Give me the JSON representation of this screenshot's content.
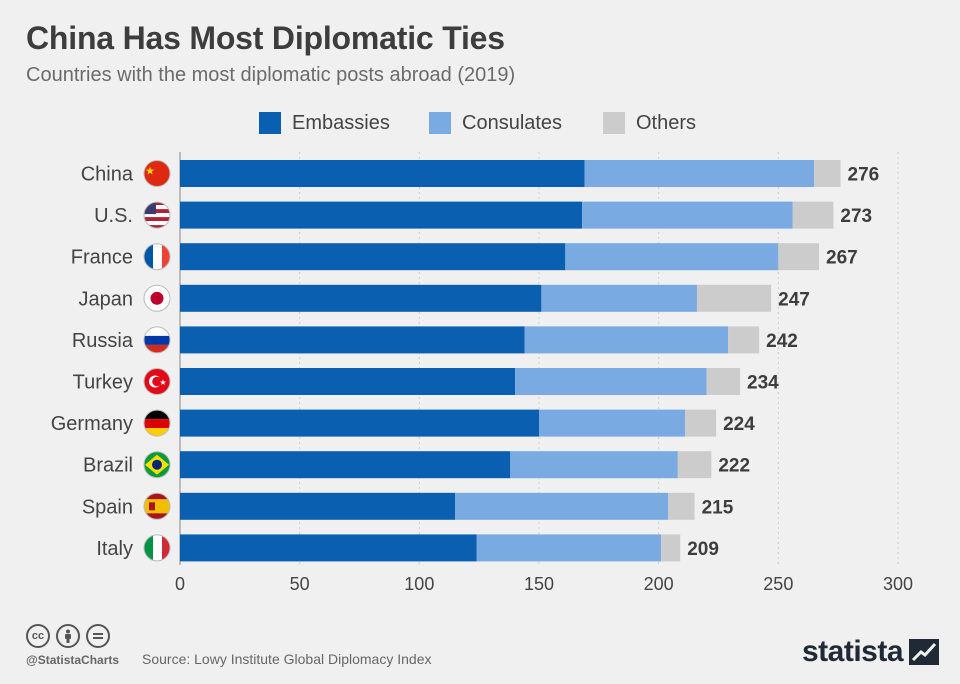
{
  "header": {
    "title": "China Has Most Diplomatic Ties",
    "subtitle": "Countries with the most diplomatic posts abroad (2019)"
  },
  "legend": [
    {
      "label": "Embassies",
      "color": "#0b5fb0"
    },
    {
      "label": "Consulates",
      "color": "#79aae2"
    },
    {
      "label": "Others",
      "color": "#cccccc"
    }
  ],
  "chart_data": {
    "type": "bar",
    "orientation": "horizontal",
    "stacked": true,
    "categories": [
      "China",
      "U.S.",
      "France",
      "Japan",
      "Russia",
      "Turkey",
      "Germany",
      "Brazil",
      "Spain",
      "Italy"
    ],
    "flags": [
      "china-flag",
      "us-flag",
      "france-flag",
      "japan-flag",
      "russia-flag",
      "turkey-flag",
      "germany-flag",
      "brazil-flag",
      "spain-flag",
      "italy-flag"
    ],
    "series": [
      {
        "name": "Embassies",
        "color": "#0b5fb0",
        "values": [
          169,
          168,
          161,
          151,
          144,
          140,
          150,
          138,
          115,
          124
        ]
      },
      {
        "name": "Consulates",
        "color": "#79aae2",
        "values": [
          96,
          88,
          89,
          65,
          85,
          80,
          61,
          70,
          89,
          77
        ]
      },
      {
        "name": "Others",
        "color": "#cccccc",
        "values": [
          11,
          17,
          17,
          31,
          13,
          14,
          13,
          14,
          11,
          8
        ]
      }
    ],
    "totals": [
      276,
      273,
      267,
      247,
      242,
      234,
      224,
      222,
      215,
      209
    ],
    "xlim": [
      0,
      300
    ],
    "xticks": [
      0,
      50,
      100,
      150,
      200,
      250,
      300
    ],
    "grid": true,
    "legend_position": "top"
  },
  "footer": {
    "handle": "@StatistaCharts",
    "source": "Source: Lowy Institute Global Diplomacy Index",
    "brand": "statista",
    "license_icons": [
      "cc-icon",
      "attribution-icon",
      "no-derivatives-icon"
    ]
  }
}
